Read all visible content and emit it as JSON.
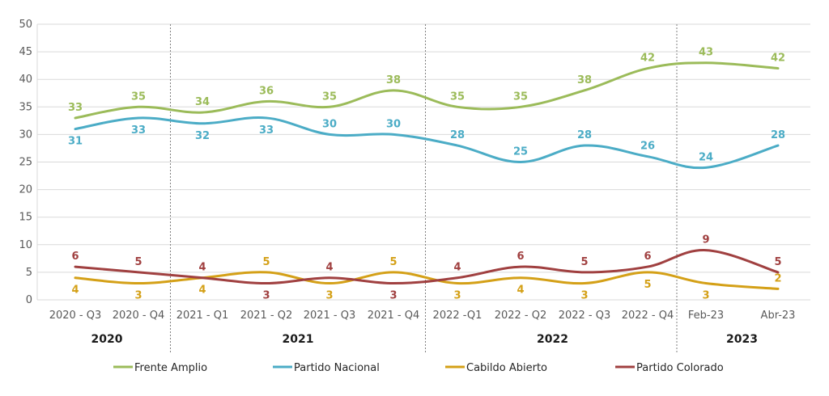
{
  "chart_data": {
    "type": "line",
    "title": "",
    "xlabel": "",
    "ylabel": "",
    "ylim": [
      0,
      50
    ],
    "yticks": [
      0,
      5,
      10,
      15,
      20,
      25,
      30,
      35,
      40,
      45,
      50
    ],
    "grid": true,
    "smooth": true,
    "categories": [
      "2020 - Q3",
      "2020 - Q4",
      "2021 - Q1",
      "2021 - Q2",
      "2021 - Q3",
      "2021 - Q4",
      "2022 -Q1",
      "2022 - Q2",
      "2022 - Q3",
      "2022 - Q4",
      "Feb-23",
      "Abr-23"
    ],
    "year_groups": [
      {
        "label": "2020",
        "start": 0,
        "end": 1
      },
      {
        "label": "2021",
        "start": 2,
        "end": 5
      },
      {
        "label": "2022",
        "start": 6,
        "end": 9
      },
      {
        "label": "2023",
        "start": 10,
        "end": 11
      }
    ],
    "legend_position": "bottom",
    "series": [
      {
        "name": "Frente Amplio",
        "color": "#9BBB59",
        "label_position": "above",
        "values": [
          33,
          35,
          34,
          36,
          35,
          38,
          35,
          35,
          38,
          42,
          43,
          42
        ]
      },
      {
        "name": "Partido Nacional",
        "color": "#4BACC6",
        "label_position": "below",
        "values": [
          31,
          33,
          32,
          33,
          30,
          30,
          28,
          25,
          28,
          26,
          24,
          28
        ],
        "label_positions": [
          "below",
          "below",
          "below",
          "below",
          "above",
          "above",
          "above",
          "above",
          "above",
          "above",
          "above",
          "above"
        ]
      },
      {
        "name": "Cabildo Abierto",
        "color": "#D4A017",
        "values": [
          4,
          3,
          4,
          5,
          3,
          5,
          3,
          4,
          3,
          5,
          3,
          2
        ],
        "label_positions": [
          "below",
          "below",
          "below",
          "above",
          "below",
          "above",
          "below",
          "below",
          "below",
          "below",
          "below",
          "above"
        ]
      },
      {
        "name": "Partido Colorado",
        "color": "#A04040",
        "values": [
          6,
          5,
          4,
          3,
          4,
          3,
          4,
          6,
          5,
          6,
          9,
          5
        ],
        "label_positions": [
          "above",
          "above",
          "above",
          "below",
          "above",
          "below",
          "above",
          "above",
          "above",
          "above",
          "above",
          "above"
        ]
      }
    ]
  }
}
